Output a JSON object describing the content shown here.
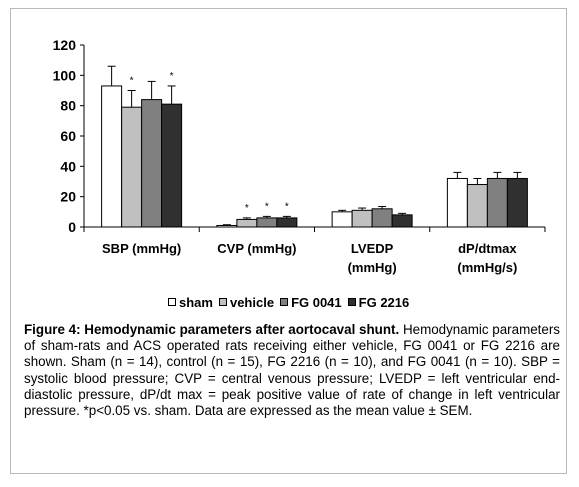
{
  "chart_data": {
    "type": "bar",
    "categories": [
      "SBP (mmHg)",
      "CVP (mmHg)",
      "LVEDP\n(mmHg)",
      "dP/dtmax\n(mmHg/s)"
    ],
    "ylim": [
      0,
      120
    ],
    "yticks": [
      0,
      20,
      40,
      60,
      80,
      100,
      120
    ],
    "legend_position": "bottom",
    "grid": false,
    "series": [
      {
        "name": "sham",
        "color": "#ffffff",
        "values": [
          93,
          1,
          10,
          32
        ],
        "errors": [
          13,
          0.5,
          1,
          4
        ]
      },
      {
        "name": "vehicle",
        "color": "#c0c0c0",
        "values": [
          79,
          5,
          11,
          28
        ],
        "errors": [
          11,
          1,
          1.5,
          4
        ]
      },
      {
        "name": "FG 0041",
        "color": "#808080",
        "values": [
          84,
          6,
          12,
          32
        ],
        "errors": [
          12,
          1,
          1.5,
          4
        ]
      },
      {
        "name": "FG 2216",
        "color": "#303030",
        "values": [
          81,
          6,
          8,
          32
        ],
        "errors": [
          12,
          1,
          1,
          4
        ]
      }
    ],
    "annotations": [
      {
        "text": "*",
        "category": 0,
        "series": 1
      },
      {
        "text": "*",
        "category": 0,
        "series": 3
      },
      {
        "text": "*",
        "category": 1,
        "series": 1
      },
      {
        "text": "*",
        "category": 1,
        "series": 2
      },
      {
        "text": "*",
        "category": 1,
        "series": 3
      }
    ]
  },
  "caption": {
    "label": "Figure 4: Hemodynamic parameters after aortocaval shunt.",
    "text": " Hemodynamic parameters of sham-rats and ACS operated rats receiving either vehicle, FG 0041 or FG 2216 are shown. Sham (n = 14), control (n = 15), FG 2216 (n = 10), and FG 0041 (n = 10). SBP = systolic blood pressure; CVP = central venous pressure; LVEDP = left ventricular end-diastolic pressure, dP/dt max = peak positive value of rate of change in left ventricular pressure.  *p<0.05 vs. sham.  Data are expressed as the mean value ± SEM."
  }
}
